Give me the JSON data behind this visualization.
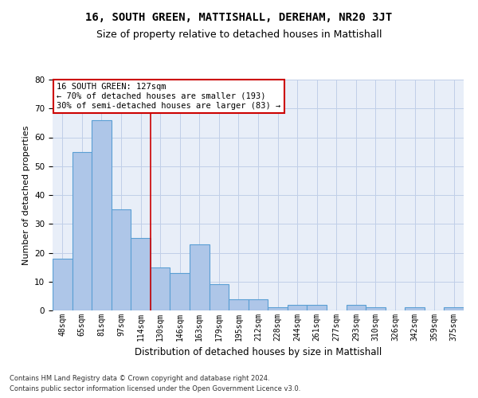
{
  "title": "16, SOUTH GREEN, MATTISHALL, DEREHAM, NR20 3JT",
  "subtitle": "Size of property relative to detached houses in Mattishall",
  "xlabel": "Distribution of detached houses by size in Mattishall",
  "ylabel": "Number of detached properties",
  "categories": [
    "48sqm",
    "65sqm",
    "81sqm",
    "97sqm",
    "114sqm",
    "130sqm",
    "146sqm",
    "163sqm",
    "179sqm",
    "195sqm",
    "212sqm",
    "228sqm",
    "244sqm",
    "261sqm",
    "277sqm",
    "293sqm",
    "310sqm",
    "326sqm",
    "342sqm",
    "359sqm",
    "375sqm"
  ],
  "values": [
    18,
    55,
    66,
    35,
    25,
    15,
    13,
    23,
    9,
    4,
    4,
    1,
    2,
    2,
    0,
    2,
    1,
    0,
    1,
    0,
    1
  ],
  "bar_color": "#aec6e8",
  "bar_edge_color": "#5a9fd4",
  "vline_x": 4.5,
  "vline_color": "#cc0000",
  "annotation_text_line1": "16 SOUTH GREEN: 127sqm",
  "annotation_text_line2": "← 70% of detached houses are smaller (193)",
  "annotation_text_line3": "30% of semi-detached houses are larger (83) →",
  "annotation_box_color": "#cc0000",
  "annotation_bg": "#ffffff",
  "grid_color": "#c0cfe8",
  "bg_color": "#e8eef8",
  "footer_line1": "Contains HM Land Registry data © Crown copyright and database right 2024.",
  "footer_line2": "Contains public sector information licensed under the Open Government Licence v3.0.",
  "ylim": [
    0,
    80
  ],
  "title_fontsize": 10,
  "subtitle_fontsize": 9,
  "tick_fontsize": 7,
  "ylabel_fontsize": 8,
  "xlabel_fontsize": 8.5,
  "annotation_fontsize": 7.5,
  "footer_fontsize": 6
}
